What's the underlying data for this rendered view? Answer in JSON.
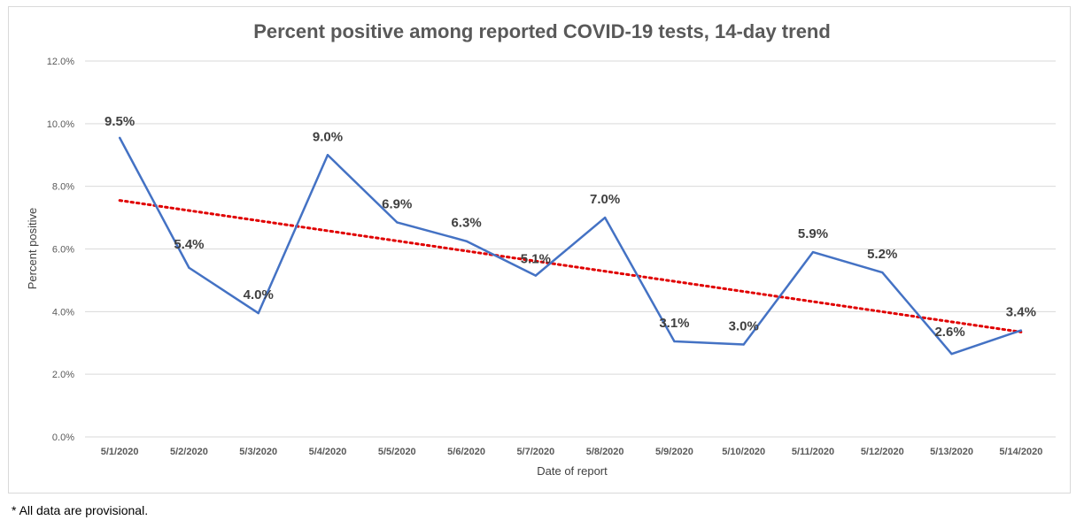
{
  "footnote": "* All data are provisional.",
  "colors": {
    "series": "#4472C4",
    "trend": "#E00000",
    "grid": "#d9d9d9",
    "text": "#595959"
  },
  "chart_data": {
    "type": "line",
    "title": "Percent positive among reported COVID-19 tests, 14-day trend",
    "xlabel": "Date of report",
    "ylabel": "Percent positive",
    "categories": [
      "5/1/2020",
      "5/2/2020",
      "5/3/2020",
      "5/4/2020",
      "5/5/2020",
      "5/6/2020",
      "5/7/2020",
      "5/8/2020",
      "5/9/2020",
      "5/10/2020",
      "5/11/2020",
      "5/12/2020",
      "5/13/2020",
      "5/14/2020"
    ],
    "values": [
      9.55,
      5.4,
      3.95,
      9.0,
      6.85,
      6.25,
      5.15,
      7.0,
      3.05,
      2.95,
      5.9,
      5.25,
      2.65,
      3.4
    ],
    "data_labels": [
      "9.5%",
      "5.4%",
      "4.0%",
      "9.0%",
      "6.9%",
      "6.3%",
      "5.1%",
      "7.0%",
      "3.1%",
      "3.0%",
      "5.9%",
      "5.2%",
      "2.6%",
      "3.4%"
    ],
    "yticks": [
      "0.0%",
      "2.0%",
      "4.0%",
      "6.0%",
      "8.0%",
      "10.0%",
      "12.0%"
    ],
    "ytick_values": [
      0,
      2,
      4,
      6,
      8,
      10,
      12
    ],
    "ylim": [
      0,
      12
    ],
    "grid": true,
    "legend": "none",
    "trendline": {
      "type": "linear",
      "style": "dotted",
      "start": 7.55,
      "end": 3.35
    }
  }
}
